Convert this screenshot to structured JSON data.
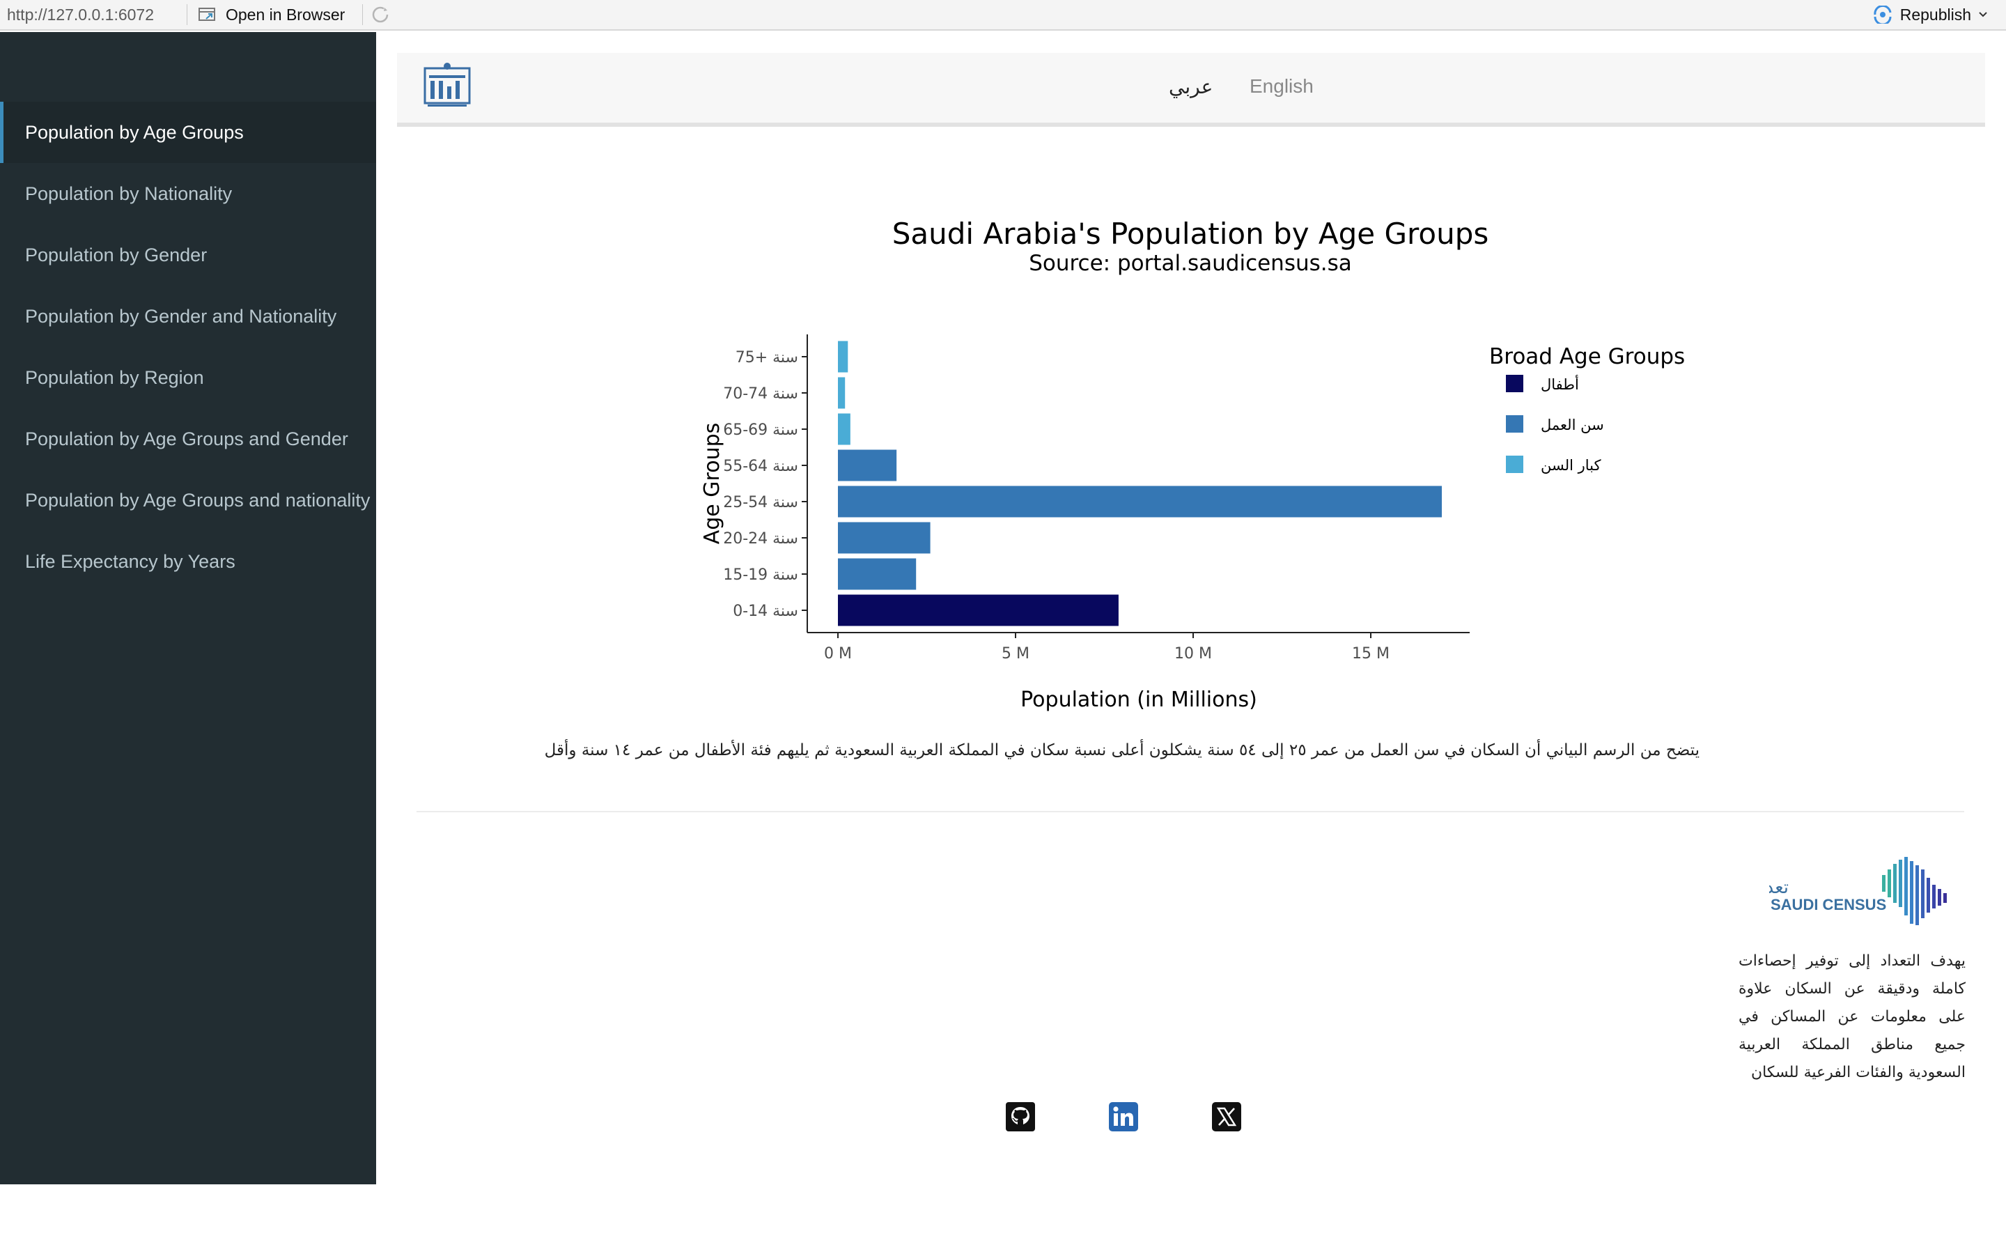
{
  "browser": {
    "url": "http://127.0.0.1:6072",
    "open_in_browser": "Open in Browser",
    "republish": "Republish"
  },
  "sidebar": {
    "items": [
      {
        "label": "Population by Age Groups",
        "active": true
      },
      {
        "label": "Population by Nationality"
      },
      {
        "label": "Population by Gender"
      },
      {
        "label": "Population by Gender and Nationality"
      },
      {
        "label": "Population by Region"
      },
      {
        "label": "Population by Age Groups and Gender"
      },
      {
        "label": "Population by Age Groups and nationality"
      },
      {
        "label": "Life Expectancy by Years"
      }
    ]
  },
  "header": {
    "lang_ar": "عربي",
    "lang_en": "English"
  },
  "chart_data": {
    "type": "bar",
    "orientation": "horizontal",
    "title": "Saudi Arabia's Population by Age Groups",
    "subtitle": "Source: portal.saudicensus.sa",
    "xlabel": "Population (in Millions)",
    "ylabel": "Age Groups",
    "xlim": [
      0,
      17.5
    ],
    "xticks": [
      0,
      5,
      10,
      15
    ],
    "xtick_labels": [
      "0 M",
      "5 M",
      "10 M",
      "15 M"
    ],
    "categories": [
      "0-14 سنة",
      "15-19 سنة",
      "20-24 سنة",
      "25-54 سنة",
      "55-64 سنة",
      "65-69 سنة",
      "70-74 سنة",
      "75+ سنة"
    ],
    "values": [
      7.9,
      2.2,
      2.6,
      17.0,
      1.65,
      0.35,
      0.2,
      0.28
    ],
    "groups": [
      "أطفال",
      "سن العمل",
      "سن العمل",
      "سن العمل",
      "سن العمل",
      "كبار السن",
      "كبار السن",
      "كبار السن"
    ],
    "legend": {
      "title": "Broad Age Groups",
      "position": "right",
      "entries": [
        {
          "name": "أطفال",
          "color": "#08085e"
        },
        {
          "name": "سن العمل",
          "color": "#3577b4"
        },
        {
          "name": "كبار السن",
          "color": "#4aacd6"
        }
      ]
    },
    "grid": false
  },
  "description": "يتضح من الرسم البياني أن السكان في سن العمل من عمر ٢٥ إلى ٥٤ سنة يشكلون أعلى نسبة سكان في المملكة العربية السعودية ثم يليهم فئة الأطفال من عمر ١٤ سنة وأقل",
  "footer": {
    "logo_text_ar": "تعداد السعودية",
    "logo_text_en": "SAUDI CENSUS",
    "text": "يهدف التعداد إلى توفير إحصاءات كاملة ودقيقة عن السكان علاوة على معلومات عن المساكن في جميع مناطق المملكة العربية السعودية والفئات الفرعية للسكان"
  },
  "colors": {
    "sidebar_bg": "#222d32",
    "sidebar_active_bg": "#1e282c",
    "accent": "#3c8dbc",
    "linkedin": "#2867b2"
  },
  "icons": [
    "open-in-browser-icon",
    "refresh-icon",
    "republish-icon",
    "github-icon",
    "linkedin-icon",
    "x-icon"
  ]
}
